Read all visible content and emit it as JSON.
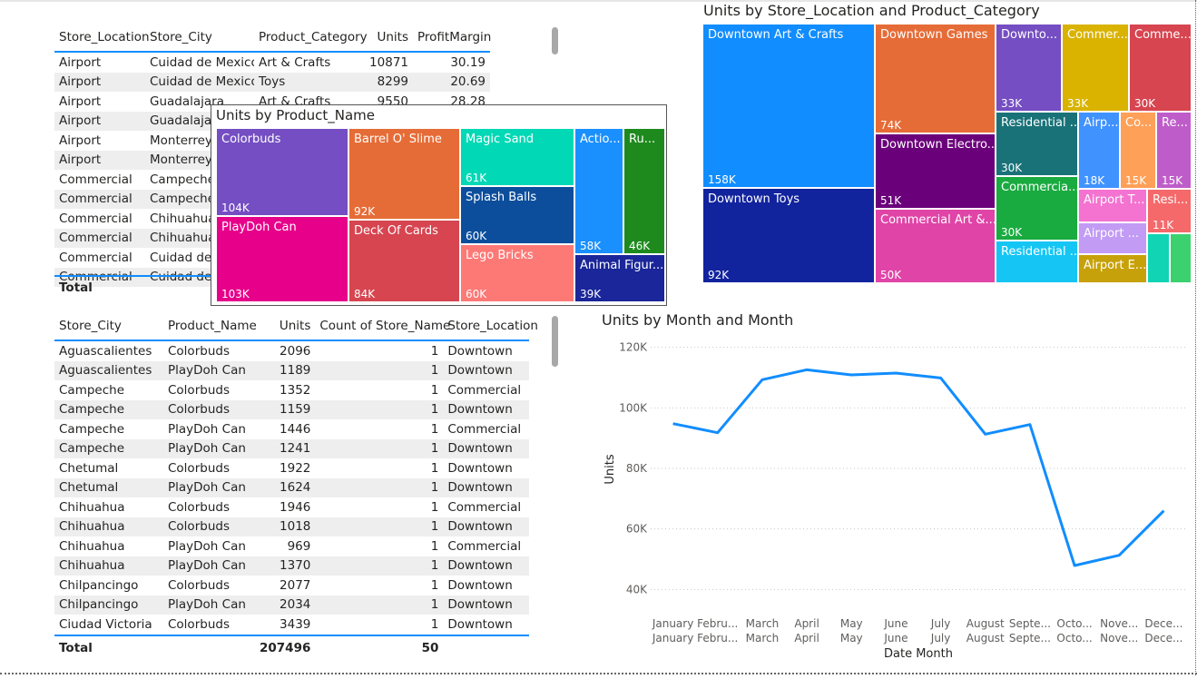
{
  "table1": {
    "columns": [
      "Store_Location",
      "Store_City",
      "Product_Category",
      "Units",
      "ProfitMargin"
    ],
    "rows": [
      [
        "Airport",
        "Cuidad de Mexico",
        "Art & Crafts",
        "10871",
        "30.19"
      ],
      [
        "Airport",
        "Cuidad de Mexico",
        "Toys",
        "8299",
        "20.69"
      ],
      [
        "Airport",
        "Guadalajara",
        "Art & Crafts",
        "9550",
        "28.28"
      ],
      [
        "Airport",
        "Guadalajara",
        "",
        "",
        ""
      ],
      [
        "Airport",
        "Monterrey",
        "",
        "",
        ""
      ],
      [
        "Airport",
        "Monterrey",
        "",
        "",
        ""
      ],
      [
        "Commercial",
        "Campeche",
        "",
        "",
        ""
      ],
      [
        "Commercial",
        "Campeche",
        "",
        "",
        ""
      ],
      [
        "Commercial",
        "Chihuahua",
        "",
        "",
        ""
      ],
      [
        "Commercial",
        "Chihuahua",
        "",
        "",
        ""
      ],
      [
        "Commercial",
        "Cuidad de",
        "",
        "",
        ""
      ],
      [
        "Commercial",
        "Cuidad de",
        "",
        "",
        ""
      ]
    ],
    "total_label": "Total"
  },
  "product_treemap": {
    "title": "Units by Product_Name",
    "tiles": [
      {
        "label": "Colorbuds",
        "value": "104K",
        "color": "#744ec2"
      },
      {
        "label": "PlayDoh Can",
        "value": "103K",
        "color": "#e6008a"
      },
      {
        "label": "Barrel O' Slime",
        "value": "92K",
        "color": "#e66c37"
      },
      {
        "label": "Deck Of Cards",
        "value": "84K",
        "color": "#d64550"
      },
      {
        "label": "Magic Sand",
        "value": "61K",
        "color": "#01d8b6"
      },
      {
        "label": "Splash Balls",
        "value": "60K",
        "color": "#0c4e9c"
      },
      {
        "label": "Lego Bricks",
        "value": "60K",
        "color": "#fd7976"
      },
      {
        "label": "Actio...",
        "value": "58K",
        "color": "#1a90ff"
      },
      {
        "label": "Ru...",
        "value": "46K",
        "color": "#1e8a1e"
      },
      {
        "label": "Animal Figur...",
        "value": "39K",
        "color": "#1a2699"
      }
    ]
  },
  "location_treemap": {
    "title": "Units by Store_Location and Product_Category",
    "tiles": [
      {
        "label": "Downtown Art & Crafts",
        "value": "158K",
        "color": "#118dff"
      },
      {
        "label": "Downtown Toys",
        "value": "92K",
        "color": "#12239e"
      },
      {
        "label": "Downtown Games",
        "value": "74K",
        "color": "#e66c37"
      },
      {
        "label": "Downtown Electro...",
        "value": "51K",
        "color": "#6b007b"
      },
      {
        "label": "Commercial Art &...",
        "value": "50K",
        "color": "#e044a7"
      },
      {
        "label": "Downto...",
        "value": "33K",
        "color": "#744ec2"
      },
      {
        "label": "Commer...",
        "value": "33K",
        "color": "#d9b300"
      },
      {
        "label": "Comme...",
        "value": "30K",
        "color": "#d64550"
      },
      {
        "label": "Residential ...",
        "value": "30K",
        "color": "#197278"
      },
      {
        "label": "Commercia...",
        "value": "30K",
        "color": "#1aab40"
      },
      {
        "label": "Residential ...",
        "value": "",
        "color": "#15c6f4"
      },
      {
        "label": "Airp...",
        "value": "18K",
        "color": "#4092ff"
      },
      {
        "label": "Co...",
        "value": "15K",
        "color": "#ffa058"
      },
      {
        "label": "Re...",
        "value": "15K",
        "color": "#be5dc9"
      },
      {
        "label": "Airport T...",
        "value": "",
        "color": "#f472d0"
      },
      {
        "label": "Resi...",
        "value": "11K",
        "color": "#f5696a"
      },
      {
        "label": "Airport ...",
        "value": "",
        "color": "#c29bf5"
      },
      {
        "label": "Airport E...",
        "value": "",
        "color": "#c7a109"
      },
      {
        "label": "",
        "value": "",
        "color": "#11d4b4"
      },
      {
        "label": "",
        "value": "",
        "color": "#3bd16f"
      }
    ]
  },
  "table2": {
    "columns": [
      "Store_City",
      "Product_Name",
      "Units",
      "Count of Store_Name",
      "Store_Location"
    ],
    "rows": [
      [
        "Aguascalientes",
        "Colorbuds",
        "2096",
        "1",
        "Downtown"
      ],
      [
        "Aguascalientes",
        "PlayDoh Can",
        "1189",
        "1",
        "Downtown"
      ],
      [
        "Campeche",
        "Colorbuds",
        "1352",
        "1",
        "Commercial"
      ],
      [
        "Campeche",
        "Colorbuds",
        "1159",
        "1",
        "Downtown"
      ],
      [
        "Campeche",
        "PlayDoh Can",
        "1446",
        "1",
        "Commercial"
      ],
      [
        "Campeche",
        "PlayDoh Can",
        "1241",
        "1",
        "Downtown"
      ],
      [
        "Chetumal",
        "Colorbuds",
        "1922",
        "1",
        "Downtown"
      ],
      [
        "Chetumal",
        "PlayDoh Can",
        "1624",
        "1",
        "Downtown"
      ],
      [
        "Chihuahua",
        "Colorbuds",
        "1946",
        "1",
        "Commercial"
      ],
      [
        "Chihuahua",
        "Colorbuds",
        "1018",
        "1",
        "Downtown"
      ],
      [
        "Chihuahua",
        "PlayDoh Can",
        "969",
        "1",
        "Commercial"
      ],
      [
        "Chihuahua",
        "PlayDoh Can",
        "1370",
        "1",
        "Downtown"
      ],
      [
        "Chilpancingo",
        "Colorbuds",
        "2077",
        "1",
        "Downtown"
      ],
      [
        "Chilpancingo",
        "PlayDoh Can",
        "2034",
        "1",
        "Downtown"
      ],
      [
        "Ciudad Victoria",
        "Colorbuds",
        "3439",
        "1",
        "Downtown"
      ]
    ],
    "total": {
      "label": "Total",
      "units": "207496",
      "count": "50"
    }
  },
  "chart_data": {
    "type": "line",
    "title": "Units by Month and Month",
    "xlabel": "Date Month",
    "ylabel": "Units",
    "categories": [
      "January",
      "February",
      "March",
      "April",
      "May",
      "June",
      "July",
      "August",
      "September",
      "October",
      "November",
      "December"
    ],
    "tick_labels_top": [
      "January",
      "Febru...",
      "March",
      "April",
      "May",
      "June",
      "July",
      "August",
      "Septe...",
      "Octo...",
      "Nove...",
      "Dece..."
    ],
    "tick_labels_bottom": [
      "January",
      "Febru...",
      "March",
      "April",
      "May",
      "June",
      "July",
      "August",
      "Septe...",
      "Octo...",
      "Nove...",
      "Dece..."
    ],
    "series": [
      {
        "values": [
          94800,
          91800,
          109300,
          112600,
          110900,
          111500,
          109900,
          91300,
          94500,
          47900,
          51300,
          66000
        ],
        "color": "#118dff"
      }
    ],
    "ylim": [
      35000,
      122000
    ],
    "yticks": [
      40000,
      60000,
      80000,
      100000,
      120000
    ],
    "ytick_labels": [
      "40K",
      "60K",
      "80K",
      "100K",
      "120K"
    ],
    "grid": true
  }
}
